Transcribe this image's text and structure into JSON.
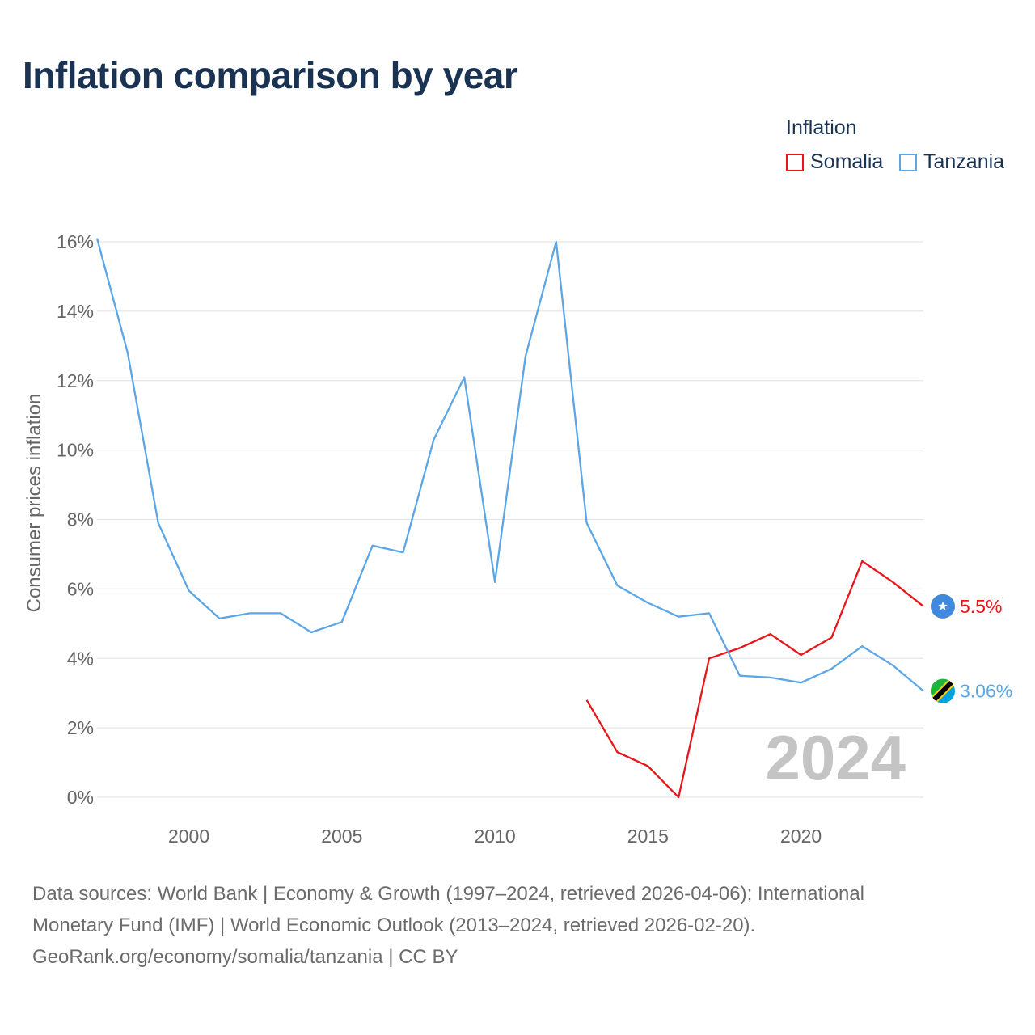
{
  "title": "Inflation comparison by year",
  "legend": {
    "title": "Inflation",
    "items": [
      {
        "name": "Somalia",
        "color": "#e8161b"
      },
      {
        "name": "Tanzania",
        "color": "#5ca6e6"
      }
    ]
  },
  "chart_data": {
    "type": "line",
    "title": "Inflation comparison by year",
    "ylabel": "Consumer prices inflation",
    "xlabel": "",
    "xlim": [
      1997,
      2024
    ],
    "ylim": [
      0,
      16
    ],
    "x_ticks": [
      2000,
      2005,
      2010,
      2015,
      2020
    ],
    "y_ticks": [
      0,
      2,
      4,
      6,
      8,
      10,
      12,
      14,
      16
    ],
    "y_tick_suffix": "%",
    "grid": true,
    "year_watermark": "2024",
    "series": [
      {
        "name": "Somalia",
        "color": "#e8161b",
        "x": [
          2013,
          2014,
          2015,
          2016,
          2017,
          2018,
          2019,
          2020,
          2021,
          2022,
          2023,
          2024
        ],
        "values": [
          2.8,
          1.3,
          0.9,
          0.0,
          4.0,
          4.3,
          4.7,
          4.1,
          4.6,
          6.8,
          6.2,
          5.5
        ],
        "end_label": "5.5%"
      },
      {
        "name": "Tanzania",
        "color": "#5ca6e6",
        "x": [
          1997,
          1998,
          1999,
          2000,
          2001,
          2002,
          2003,
          2004,
          2005,
          2006,
          2007,
          2008,
          2009,
          2010,
          2011,
          2012,
          2013,
          2014,
          2015,
          2016,
          2017,
          2018,
          2019,
          2020,
          2021,
          2022,
          2023,
          2024
        ],
        "values": [
          16.1,
          12.8,
          7.9,
          5.95,
          5.15,
          5.3,
          5.3,
          4.75,
          5.05,
          7.25,
          7.05,
          10.3,
          12.1,
          6.2,
          12.7,
          16.0,
          7.9,
          6.1,
          5.6,
          5.2,
          5.3,
          3.5,
          3.45,
          3.3,
          3.7,
          4.35,
          3.8,
          3.06
        ],
        "end_label": "3.06%"
      }
    ]
  },
  "sources": {
    "line1": "Data sources: World Bank | Economy & Growth (1997–2024, retrieved 2026-04-06); International",
    "line2": "Monetary Fund (IMF) | World Economic Outlook (2013–2024, retrieved 2026-02-20).",
    "line3": "GeoRank.org/economy/somalia/tanzania | CC BY"
  }
}
